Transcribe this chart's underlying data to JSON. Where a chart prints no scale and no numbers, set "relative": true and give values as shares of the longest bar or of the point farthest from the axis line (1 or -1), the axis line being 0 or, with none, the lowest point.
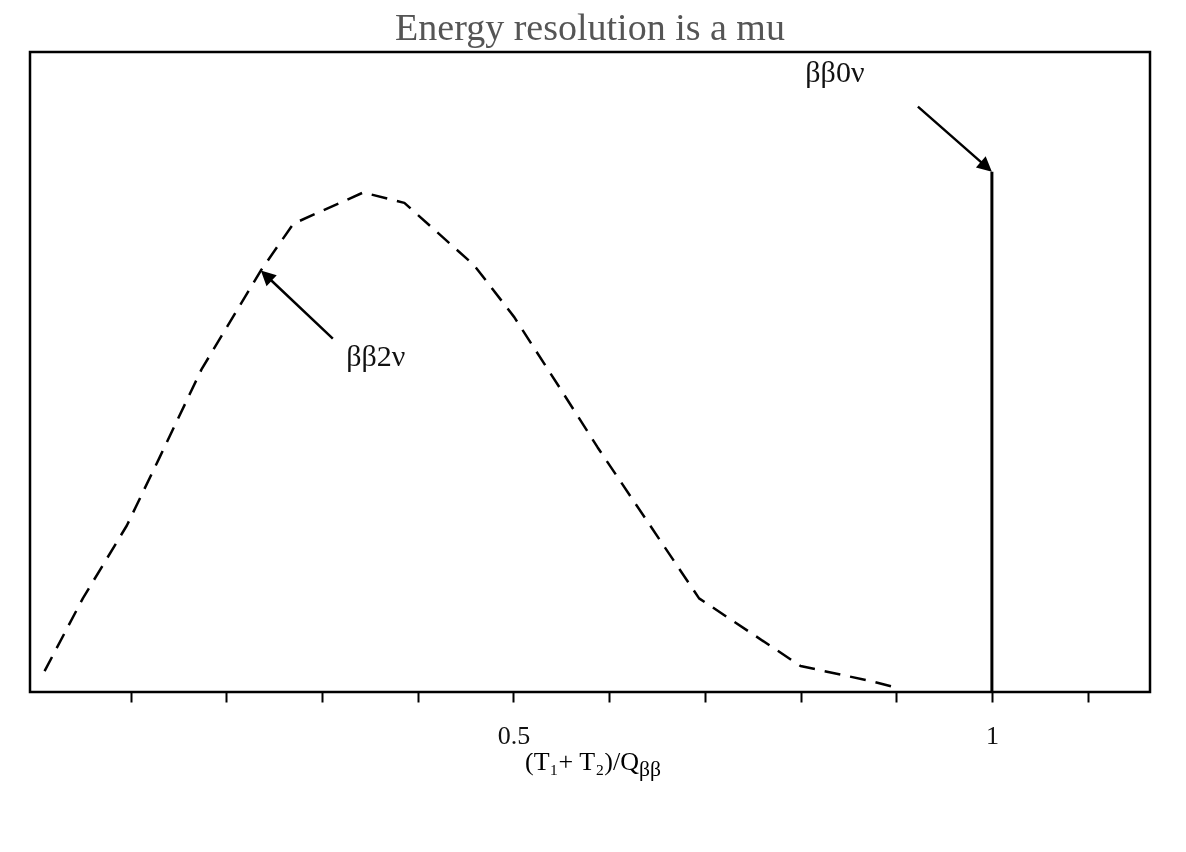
{
  "chart_data": {
    "type": "line",
    "relative": true,
    "title": "Energy resolution is a mu",
    "xlabel": "(T₁+ T₂)/Q$_{ββ}$",
    "xlim": [
      0,
      1.16
    ],
    "xticks": [
      {
        "value": 0.1,
        "label": null
      },
      {
        "value": 0.2,
        "label": null
      },
      {
        "value": 0.3,
        "label": null
      },
      {
        "value": 0.4,
        "label": null
      },
      0.5,
      {
        "value": 0.6,
        "label": null
      },
      {
        "value": 0.7,
        "label": null
      },
      {
        "value": 0.8,
        "label": null
      },
      {
        "value": 0.9,
        "label": null
      },
      1,
      {
        "value": 1.1,
        "label": null
      }
    ],
    "tick_labels": "x",
    "grid": false,
    "series": [
      {
        "color": "#000000",
        "line_style": "dashed",
        "x": [
          0.01,
          0.05,
          0.096,
          0.13,
          0.174,
          0.236,
          0.27,
          0.343,
          0.386,
          0.459,
          0.501,
          0.55,
          0.588,
          0.694,
          0.8,
          0.876,
          0.897
        ],
        "values": [
          0.04,
          0.18,
          0.32,
          0.45,
          0.62,
          0.81,
          0.9,
          0.96,
          0.94,
          0.82,
          0.72,
          0.58,
          0.47,
          0.18,
          0.05,
          0.02,
          0.01
        ]
      },
      {
        "type": "bar",
        "color": "#000000",
        "x": [
          1
        ],
        "values": [
          1
        ]
      }
    ],
    "annotations": [
      "ββ2ν",
      "ββ0ν"
    ]
  }
}
